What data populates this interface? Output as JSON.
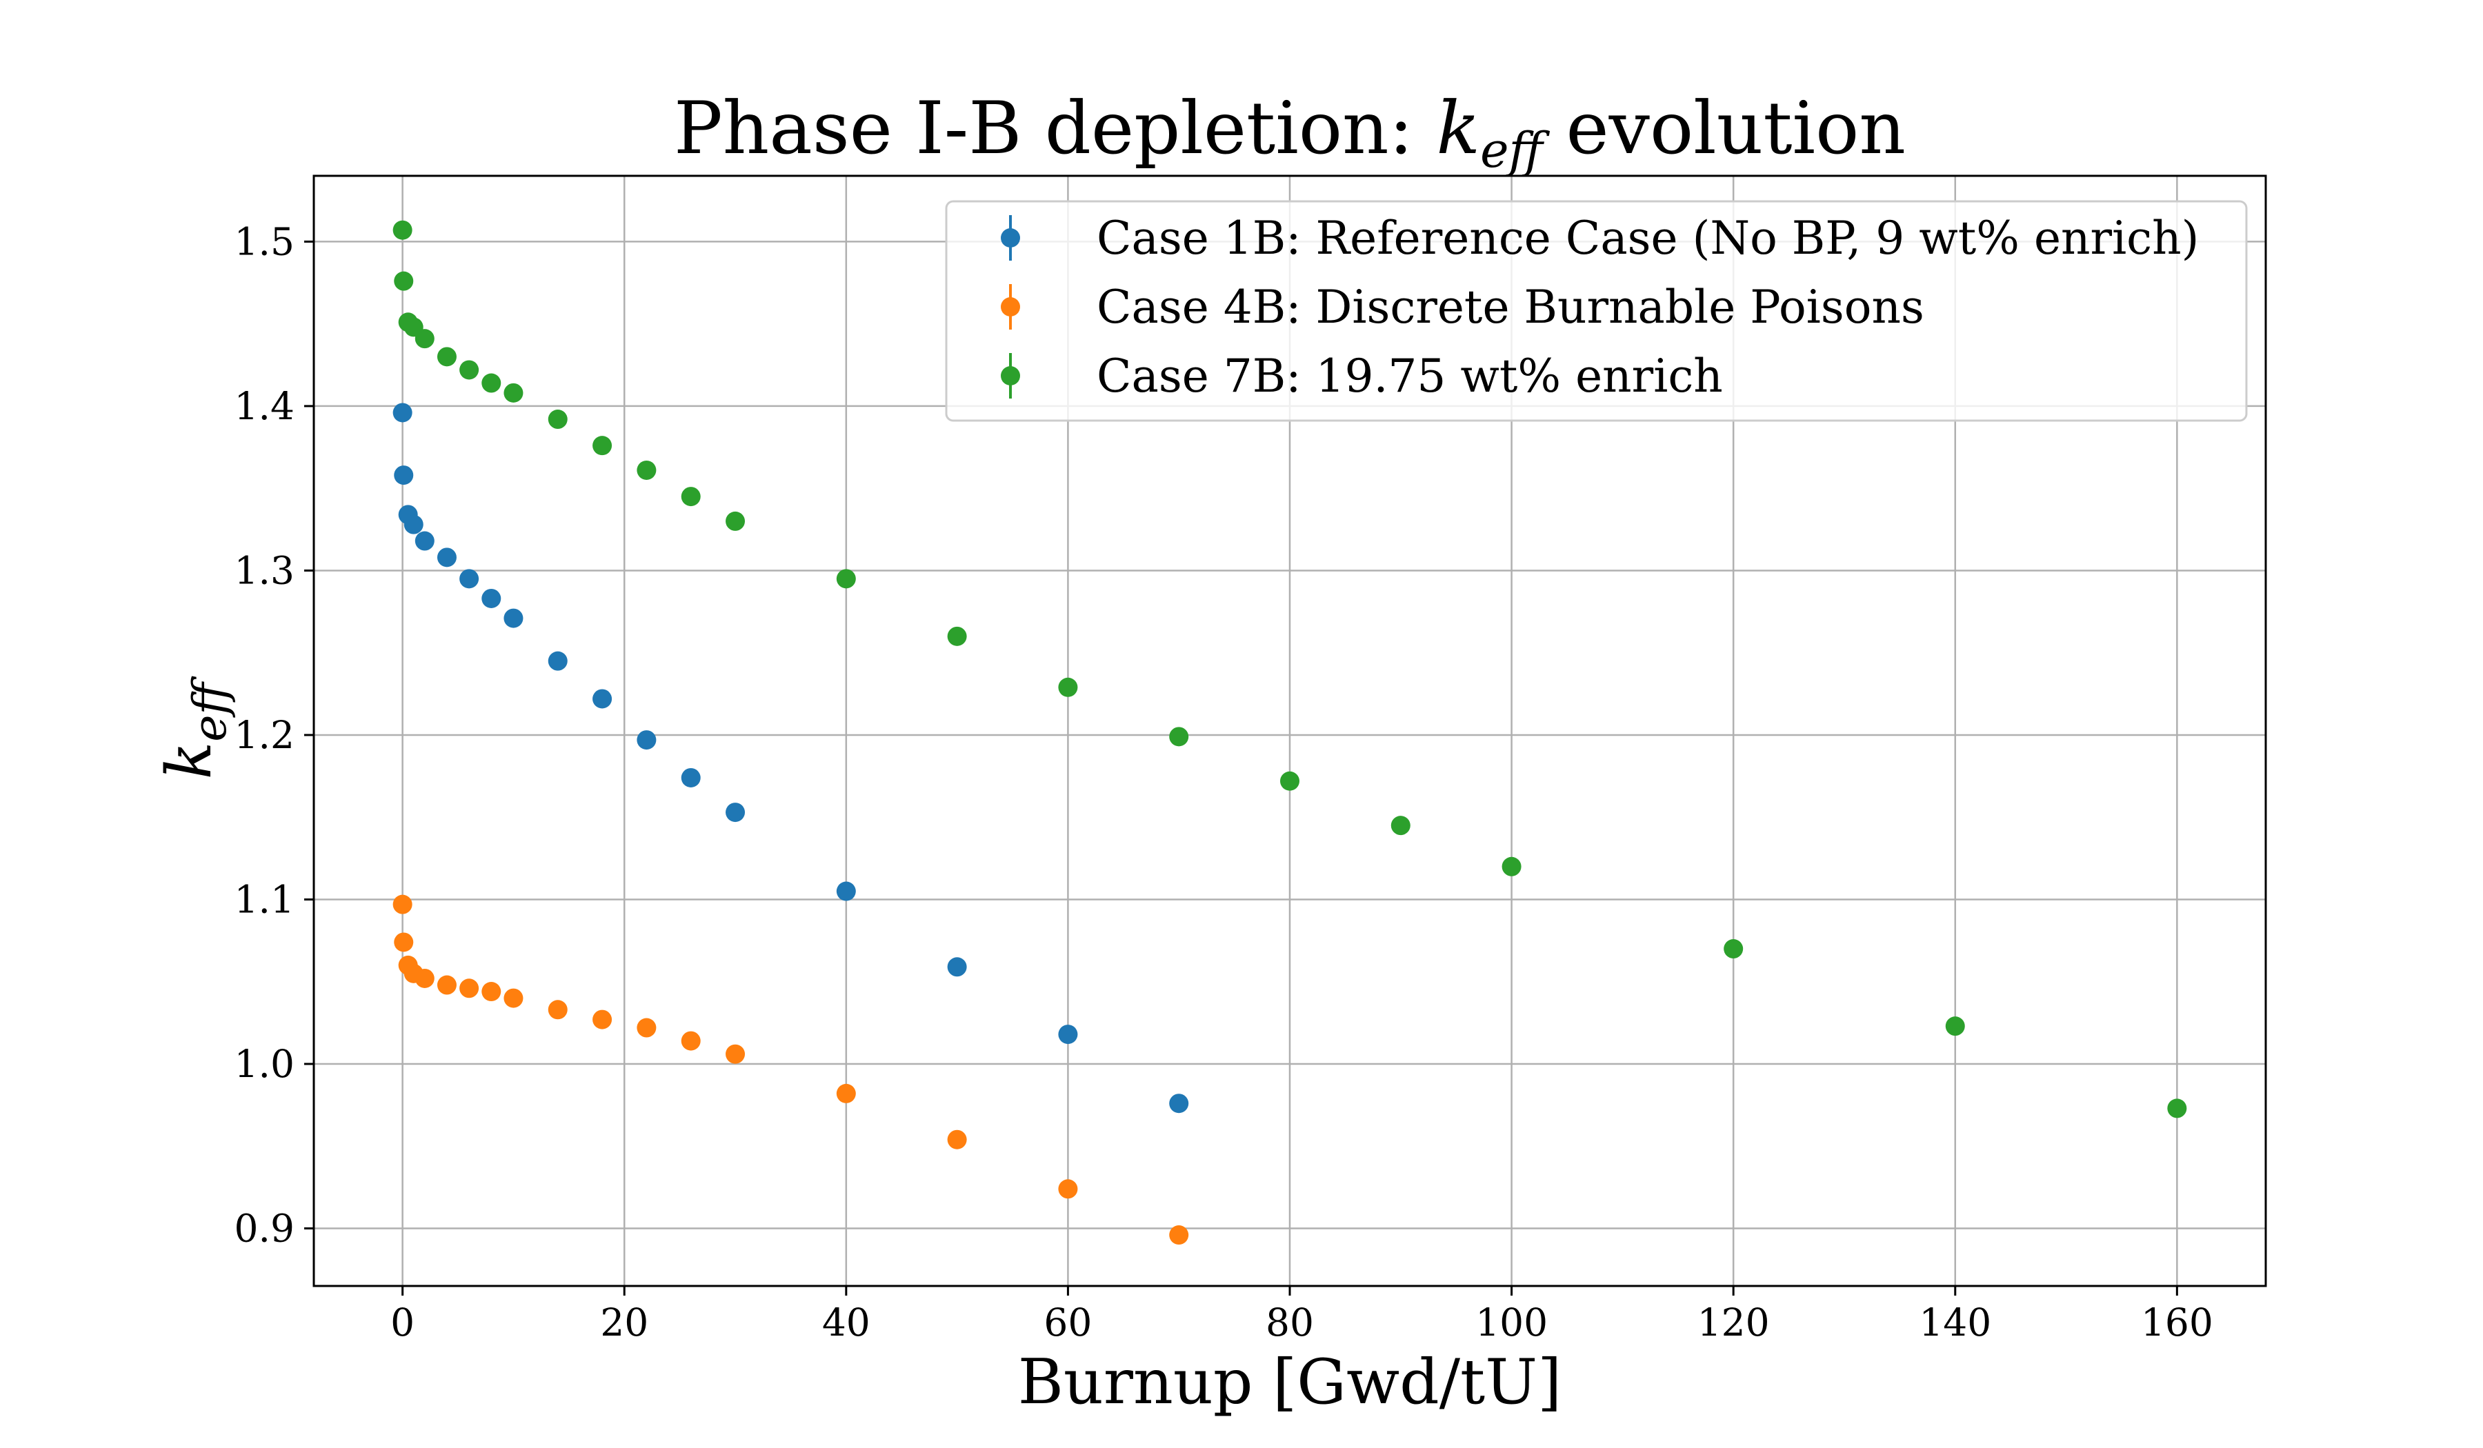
{
  "chart_data": {
    "type": "scatter",
    "title_parts": {
      "before": "Phase I-B depletion: ",
      "symbol": "k",
      "subscript": "eff",
      "after": " evolution"
    },
    "xlabel": "Burnup [Gwd/tU]",
    "ylabel": {
      "symbol": "k",
      "subscript": "eff"
    },
    "xlim": [
      -8,
      168
    ],
    "ylim": [
      0.865,
      1.54
    ],
    "xticks": [
      0,
      20,
      40,
      60,
      80,
      100,
      120,
      140,
      160
    ],
    "yticks": [
      0.9,
      1.0,
      1.1,
      1.2,
      1.3,
      1.4,
      1.5
    ],
    "grid": true,
    "legend_position": "top-right",
    "series": [
      {
        "name": "Case 1B: Reference Case (No BP, 9 wt% enrich)",
        "color": "#1f77b4",
        "x": [
          0,
          0.1,
          0.5,
          1,
          2,
          4,
          6,
          8,
          10,
          14,
          18,
          22,
          26,
          30,
          40,
          50,
          60,
          70
        ],
        "y": [
          1.396,
          1.358,
          1.334,
          1.328,
          1.318,
          1.308,
          1.295,
          1.283,
          1.271,
          1.245,
          1.222,
          1.197,
          1.174,
          1.153,
          1.105,
          1.059,
          1.018,
          0.976
        ]
      },
      {
        "name": "Case 4B: Discrete Burnable Poisons",
        "color": "#ff7f0e",
        "x": [
          0,
          0.1,
          0.5,
          1,
          2,
          4,
          6,
          8,
          10,
          14,
          18,
          22,
          26,
          30,
          40,
          50,
          60,
          70
        ],
        "y": [
          1.097,
          1.074,
          1.06,
          1.055,
          1.052,
          1.048,
          1.046,
          1.044,
          1.04,
          1.033,
          1.027,
          1.022,
          1.014,
          1.006,
          0.982,
          0.954,
          0.924,
          0.896
        ]
      },
      {
        "name": "Case 7B: 19.75 wt% enrich",
        "color": "#2ca02c",
        "x": [
          0,
          0.1,
          0.5,
          1,
          2,
          4,
          6,
          8,
          10,
          14,
          18,
          22,
          26,
          30,
          40,
          50,
          60,
          70,
          80,
          90,
          100,
          120,
          140,
          160
        ],
        "y": [
          1.507,
          1.476,
          1.451,
          1.448,
          1.441,
          1.43,
          1.422,
          1.414,
          1.408,
          1.392,
          1.376,
          1.361,
          1.345,
          1.33,
          1.295,
          1.26,
          1.229,
          1.199,
          1.172,
          1.145,
          1.12,
          1.07,
          1.023,
          0.973
        ]
      }
    ]
  }
}
